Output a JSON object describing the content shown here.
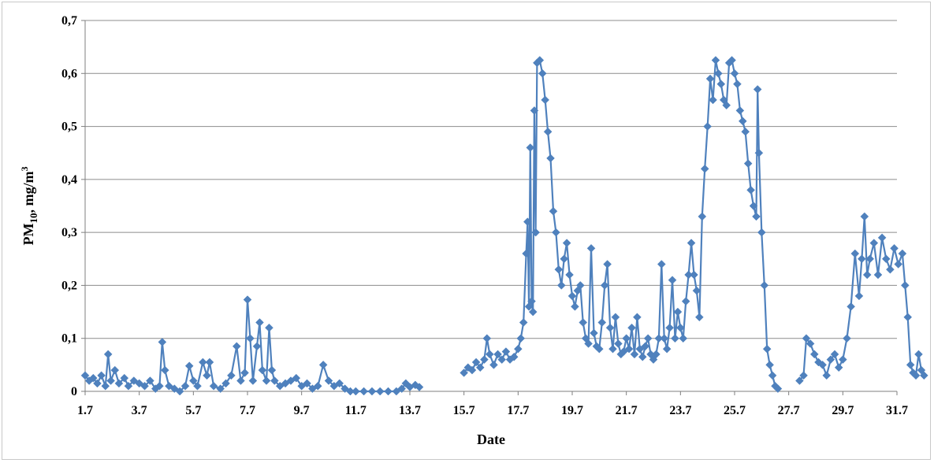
{
  "chart_data": {
    "type": "line",
    "title": "",
    "xlabel": "Date",
    "ylabel": {
      "base": "PM",
      "sub": "10",
      "mid": ",  mg/m",
      "sup": "3"
    },
    "ylim": [
      0,
      0.7
    ],
    "xlim": [
      0,
      30
    ],
    "grid": "horizontal",
    "legend": "none",
    "color": "#4f81bd",
    "marker": "diamond",
    "y_ticks": [
      "0",
      "0,1",
      "0,2",
      "0,3",
      "0,4",
      "0,5",
      "0,6",
      "0,7"
    ],
    "y_tick_values": [
      0,
      0.1,
      0.2,
      0.3,
      0.4,
      0.5,
      0.6,
      0.7
    ],
    "x_ticks": [
      "1.7",
      "3.7",
      "5.7",
      "7.7",
      "9.7",
      "11.7",
      "13.7",
      "15.7",
      "17.7",
      "19.7",
      "21.7",
      "23.7",
      "25.7",
      "27.7",
      "29.7",
      "31.7"
    ],
    "x_tick_days": [
      0,
      2,
      4,
      6,
      8,
      10,
      12,
      14,
      16,
      18,
      20,
      22,
      24,
      26,
      28,
      30
    ],
    "x_unit": "days from 1.7",
    "series": [
      {
        "segments": [
          [
            [
              0.0,
              0.03
            ],
            [
              0.15,
              0.02
            ],
            [
              0.3,
              0.025
            ],
            [
              0.45,
              0.015
            ],
            [
              0.6,
              0.03
            ],
            [
              0.75,
              0.01
            ],
            [
              0.85,
              0.07
            ],
            [
              0.95,
              0.02
            ],
            [
              1.1,
              0.04
            ],
            [
              1.25,
              0.015
            ],
            [
              1.45,
              0.025
            ],
            [
              1.6,
              0.01
            ],
            [
              1.8,
              0.02
            ],
            [
              2.0,
              0.015
            ],
            [
              2.2,
              0.01
            ],
            [
              2.4,
              0.02
            ],
            [
              2.6,
              0.005
            ],
            [
              2.75,
              0.01
            ],
            [
              2.85,
              0.093
            ],
            [
              2.95,
              0.04
            ],
            [
              3.1,
              0.01
            ],
            [
              3.3,
              0.005
            ],
            [
              3.5,
              0.0
            ],
            [
              3.7,
              0.01
            ],
            [
              3.85,
              0.048
            ],
            [
              4.0,
              0.02
            ],
            [
              4.15,
              0.01
            ],
            [
              4.35,
              0.055
            ],
            [
              4.5,
              0.03
            ],
            [
              4.6,
              0.055
            ],
            [
              4.75,
              0.01
            ],
            [
              5.0,
              0.005
            ],
            [
              5.2,
              0.015
            ],
            [
              5.4,
              0.03
            ],
            [
              5.6,
              0.085
            ],
            [
              5.75,
              0.02
            ],
            [
              5.9,
              0.035
            ],
            [
              6.0,
              0.173
            ],
            [
              6.1,
              0.1
            ],
            [
              6.2,
              0.02
            ],
            [
              6.35,
              0.085
            ],
            [
              6.45,
              0.13
            ],
            [
              6.55,
              0.04
            ],
            [
              6.7,
              0.02
            ],
            [
              6.8,
              0.12
            ],
            [
              6.9,
              0.04
            ],
            [
              7.0,
              0.02
            ],
            [
              7.2,
              0.01
            ],
            [
              7.4,
              0.015
            ],
            [
              7.6,
              0.02
            ],
            [
              7.8,
              0.025
            ],
            [
              8.0,
              0.01
            ],
            [
              8.2,
              0.015
            ],
            [
              8.4,
              0.005
            ],
            [
              8.6,
              0.01
            ],
            [
              8.8,
              0.05
            ],
            [
              9.0,
              0.02
            ],
            [
              9.2,
              0.01
            ],
            [
              9.4,
              0.015
            ],
            [
              9.6,
              0.005
            ],
            [
              9.8,
              0.0
            ],
            [
              10.0,
              0.0
            ],
            [
              10.3,
              0.0
            ],
            [
              10.6,
              0.0
            ],
            [
              10.9,
              0.0
            ],
            [
              11.2,
              0.0
            ],
            [
              11.5,
              0.0
            ],
            [
              11.7,
              0.005
            ],
            [
              11.85,
              0.015
            ],
            [
              12.0,
              0.008
            ],
            [
              12.2,
              0.012
            ],
            [
              12.35,
              0.008
            ]
          ],
          [
            [
              14.0,
              0.035
            ],
            [
              14.15,
              0.045
            ],
            [
              14.3,
              0.04
            ],
            [
              14.45,
              0.055
            ],
            [
              14.6,
              0.045
            ],
            [
              14.75,
              0.06
            ],
            [
              14.85,
              0.1
            ],
            [
              14.95,
              0.07
            ],
            [
              15.1,
              0.05
            ],
            [
              15.25,
              0.07
            ],
            [
              15.4,
              0.06
            ],
            [
              15.55,
              0.075
            ],
            [
              15.7,
              0.06
            ],
            [
              15.85,
              0.065
            ],
            [
              16.0,
              0.08
            ],
            [
              16.1,
              0.1
            ],
            [
              16.2,
              0.13
            ],
            [
              16.3,
              0.26
            ],
            [
              16.35,
              0.32
            ],
            [
              16.4,
              0.16
            ],
            [
              16.45,
              0.46
            ],
            [
              16.5,
              0.17
            ],
            [
              16.55,
              0.15
            ],
            [
              16.6,
              0.53
            ],
            [
              16.65,
              0.3
            ],
            [
              16.7,
              0.62
            ],
            [
              16.8,
              0.625
            ],
            [
              16.9,
              0.6
            ],
            [
              17.0,
              0.55
            ],
            [
              17.1,
              0.49
            ],
            [
              17.2,
              0.44
            ],
            [
              17.3,
              0.34
            ],
            [
              17.4,
              0.3
            ],
            [
              17.5,
              0.23
            ],
            [
              17.6,
              0.2
            ],
            [
              17.7,
              0.25
            ],
            [
              17.8,
              0.28
            ],
            [
              17.9,
              0.22
            ],
            [
              18.0,
              0.18
            ],
            [
              18.1,
              0.16
            ],
            [
              18.2,
              0.19
            ],
            [
              18.3,
              0.2
            ],
            [
              18.4,
              0.13
            ],
            [
              18.5,
              0.1
            ],
            [
              18.6,
              0.09
            ],
            [
              18.7,
              0.27
            ],
            [
              18.8,
              0.11
            ],
            [
              18.9,
              0.085
            ],
            [
              19.0,
              0.08
            ],
            [
              19.1,
              0.13
            ],
            [
              19.2,
              0.2
            ],
            [
              19.3,
              0.24
            ],
            [
              19.4,
              0.12
            ],
            [
              19.5,
              0.08
            ],
            [
              19.6,
              0.14
            ],
            [
              19.7,
              0.09
            ],
            [
              19.8,
              0.07
            ],
            [
              19.9,
              0.075
            ],
            [
              20.0,
              0.1
            ],
            [
              20.1,
              0.08
            ],
            [
              20.2,
              0.12
            ],
            [
              20.3,
              0.07
            ],
            [
              20.4,
              0.14
            ],
            [
              20.5,
              0.08
            ],
            [
              20.6,
              0.065
            ],
            [
              20.7,
              0.085
            ],
            [
              20.8,
              0.1
            ],
            [
              20.9,
              0.07
            ],
            [
              21.0,
              0.06
            ],
            [
              21.1,
              0.07
            ],
            [
              21.2,
              0.1
            ],
            [
              21.3,
              0.24
            ],
            [
              21.4,
              0.1
            ],
            [
              21.5,
              0.08
            ],
            [
              21.6,
              0.12
            ],
            [
              21.7,
              0.21
            ],
            [
              21.8,
              0.1
            ],
            [
              21.9,
              0.15
            ],
            [
              22.0,
              0.12
            ],
            [
              22.1,
              0.1
            ],
            [
              22.2,
              0.17
            ],
            [
              22.3,
              0.22
            ],
            [
              22.4,
              0.28
            ],
            [
              22.5,
              0.22
            ],
            [
              22.6,
              0.19
            ],
            [
              22.7,
              0.14
            ],
            [
              22.8,
              0.33
            ],
            [
              22.9,
              0.42
            ],
            [
              23.0,
              0.5
            ],
            [
              23.1,
              0.59
            ],
            [
              23.2,
              0.55
            ],
            [
              23.3,
              0.625
            ],
            [
              23.4,
              0.6
            ],
            [
              23.5,
              0.58
            ],
            [
              23.6,
              0.55
            ],
            [
              23.7,
              0.54
            ],
            [
              23.8,
              0.62
            ],
            [
              23.9,
              0.625
            ],
            [
              24.0,
              0.6
            ],
            [
              24.1,
              0.58
            ],
            [
              24.2,
              0.53
            ],
            [
              24.3,
              0.51
            ],
            [
              24.4,
              0.49
            ],
            [
              24.5,
              0.43
            ],
            [
              24.6,
              0.38
            ],
            [
              24.7,
              0.35
            ],
            [
              24.8,
              0.33
            ],
            [
              24.85,
              0.57
            ],
            [
              24.9,
              0.45
            ],
            [
              25.0,
              0.3
            ],
            [
              25.1,
              0.2
            ],
            [
              25.2,
              0.08
            ],
            [
              25.3,
              0.05
            ],
            [
              25.4,
              0.03
            ],
            [
              25.5,
              0.01
            ],
            [
              25.6,
              0.005
            ]
          ],
          [
            [
              26.4,
              0.02
            ],
            [
              26.55,
              0.03
            ],
            [
              26.65,
              0.1
            ],
            [
              26.8,
              0.09
            ],
            [
              26.95,
              0.07
            ],
            [
              27.1,
              0.055
            ],
            [
              27.25,
              0.05
            ],
            [
              27.4,
              0.03
            ],
            [
              27.55,
              0.06
            ],
            [
              27.7,
              0.07
            ],
            [
              27.85,
              0.045
            ],
            [
              28.0,
              0.06
            ],
            [
              28.15,
              0.1
            ],
            [
              28.3,
              0.16
            ],
            [
              28.45,
              0.26
            ],
            [
              28.6,
              0.18
            ],
            [
              28.7,
              0.25
            ],
            [
              28.8,
              0.33
            ],
            [
              28.9,
              0.22
            ],
            [
              29.0,
              0.25
            ],
            [
              29.15,
              0.28
            ],
            [
              29.3,
              0.22
            ],
            [
              29.45,
              0.29
            ],
            [
              29.6,
              0.25
            ],
            [
              29.75,
              0.23
            ],
            [
              29.9,
              0.27
            ],
            [
              30.05,
              0.24
            ],
            [
              30.2,
              0.26
            ],
            [
              30.3,
              0.2
            ],
            [
              30.4,
              0.14
            ],
            [
              30.5,
              0.05
            ],
            [
              30.6,
              0.035
            ],
            [
              30.7,
              0.03
            ],
            [
              30.8,
              0.07
            ],
            [
              30.9,
              0.04
            ],
            [
              31.0,
              0.03
            ]
          ]
        ]
      }
    ]
  }
}
